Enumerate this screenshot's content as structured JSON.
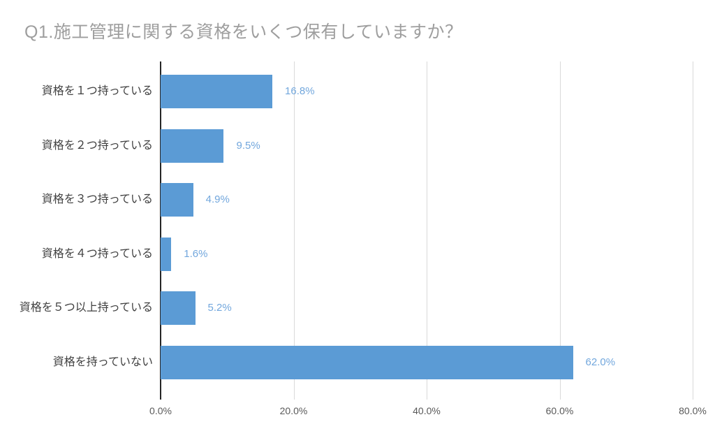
{
  "title": "Q1.施工管理に関する資格をいくつ保有していますか？",
  "colors": {
    "bar": "#5B9BD5",
    "value_label": "#72A7DD",
    "title": "#9E9E9E",
    "category": "#3F3F3F",
    "tick": "#595959",
    "gridline": "#D9D9D9",
    "axis": "#262626",
    "background": "#FFFFFF"
  },
  "chart_data": {
    "type": "bar",
    "orientation": "horizontal",
    "title": "Q1.施工管理に関する資格をいくつ保有していますか？",
    "categories": [
      "資格を１つ持っている",
      "資格を２つ持っている",
      "資格を３つ持っている",
      "資格を４つ持っている",
      "資格を５つ以上持っている",
      "資格を持っていない"
    ],
    "values": [
      16.8,
      9.5,
      4.9,
      1.6,
      5.2,
      62.0
    ],
    "value_labels": [
      "16.8%",
      "9.5%",
      "4.9%",
      "1.6%",
      "5.2%",
      "62.0%"
    ],
    "x_ticks": [
      "0.0%",
      "20.0%",
      "40.0%",
      "60.0%",
      "80.0%"
    ],
    "xlim": [
      0,
      80
    ],
    "xlabel": "",
    "ylabel": "",
    "grid": true,
    "legend": false
  }
}
